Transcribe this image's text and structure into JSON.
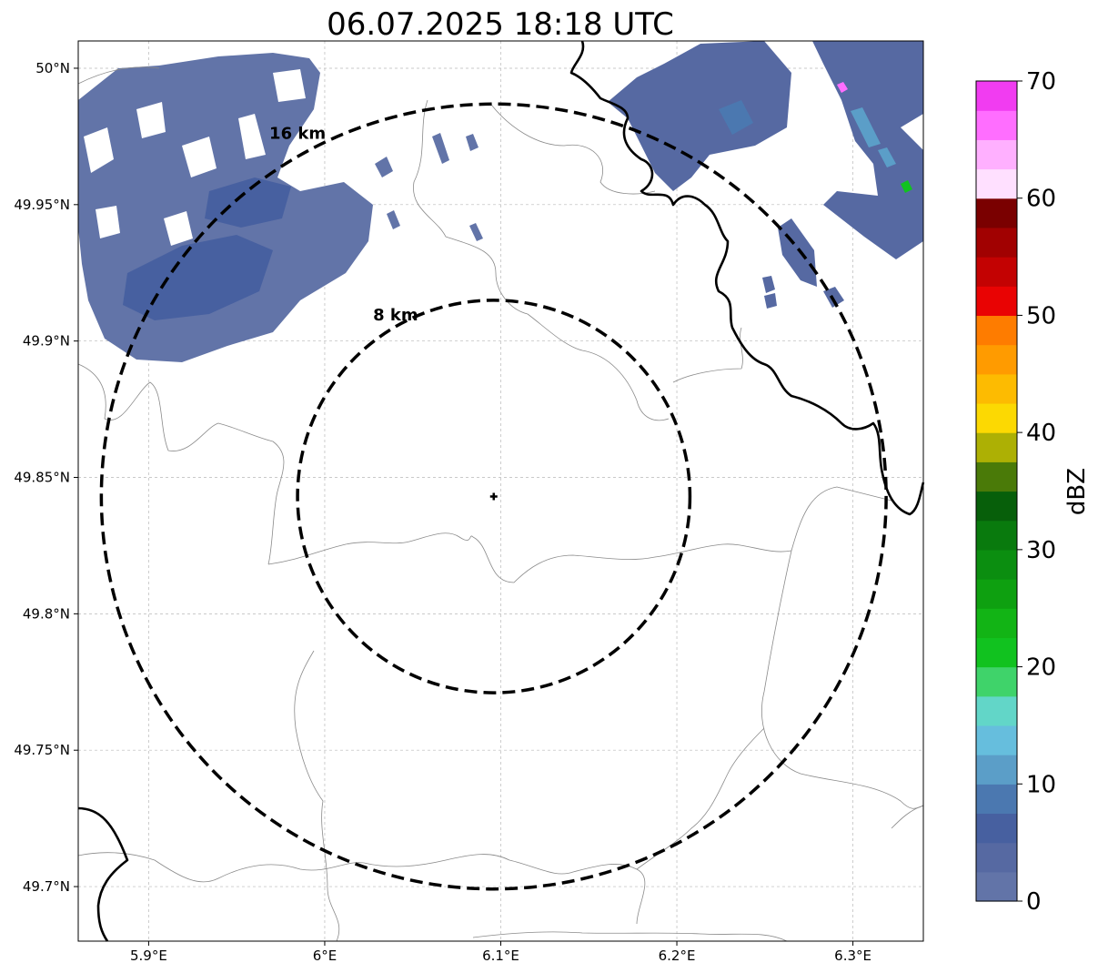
{
  "title": "06.07.2025 18:18 UTC",
  "map": {
    "x_ticks": [
      "5.9°E",
      "6°E",
      "6.1°E",
      "6.2°E",
      "6.3°E"
    ],
    "x_tick_values": [
      5.9,
      6.0,
      6.1,
      6.2,
      6.3
    ],
    "y_ticks": [
      "50°N",
      "49.95°N",
      "49.9°N",
      "49.85°N",
      "49.8°N",
      "49.75°N",
      "49.7°N"
    ],
    "y_tick_values": [
      50.0,
      49.95,
      49.9,
      49.85,
      49.8,
      49.75,
      49.7
    ],
    "lon_range": [
      5.86,
      6.34
    ],
    "lat_range": [
      49.68,
      50.01
    ],
    "grid": true,
    "center": {
      "lon": 6.096,
      "lat": 49.843
    },
    "rings": [
      {
        "label": "8 km",
        "radius_km": 8
      },
      {
        "label": "16 km",
        "radius_km": 16
      }
    ]
  },
  "colorbar": {
    "label": "dBZ",
    "ticks": [
      "0",
      "10",
      "20",
      "30",
      "40",
      "50",
      "60",
      "70"
    ],
    "min": 0,
    "max": 70,
    "step": 2.5,
    "colors": [
      "#6274a8",
      "#5669a2",
      "#4760a0",
      "#4b78b0",
      "#5b9ec8",
      "#66bedd",
      "#62d6c8",
      "#3fd36a",
      "#11c21f",
      "#12b415",
      "#0ea010",
      "#0b8e10",
      "#097a0d",
      "#075f0a",
      "#4a7a08",
      "#adb004",
      "#fcd902",
      "#fdbb01",
      "#ff9b00",
      "#fe7c00",
      "#e90303",
      "#c30202",
      "#a10101",
      "#7a0000",
      "#ffe0ff",
      "#ffb0ff",
      "#ff6eff",
      "#f13cf1"
    ]
  }
}
